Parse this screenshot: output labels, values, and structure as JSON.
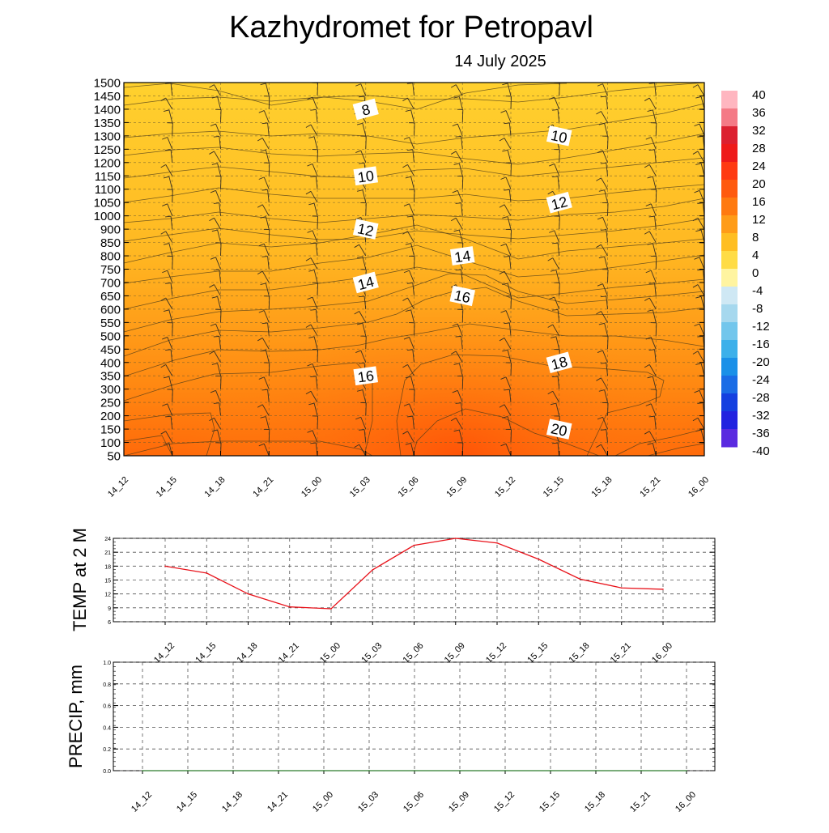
{
  "header": {
    "title": "Kazhydromet  for Petropavl",
    "date": "14 July 2025"
  },
  "colors": {
    "temp_line": "#e8121a",
    "precip_line": "#2a7a2a"
  },
  "chart_data": [
    {
      "type": "heatmap",
      "name": "vertical-cross-section",
      "x": [
        "14_12",
        "14_15",
        "14_18",
        "14_21",
        "15_00",
        "15_03",
        "15_06",
        "15_09",
        "15_12",
        "15_15",
        "15_18",
        "15_21",
        "16_00"
      ],
      "yticks": [
        50,
        100,
        150,
        200,
        250,
        300,
        350,
        400,
        450,
        500,
        550,
        600,
        650,
        700,
        750,
        800,
        850,
        900,
        1000,
        1050,
        1100,
        1150,
        1200,
        1250,
        1300,
        1350,
        1400,
        1450,
        1500
      ],
      "grid_y": true,
      "colorbar": {
        "ticks": [
          40,
          36,
          32,
          28,
          24,
          20,
          16,
          12,
          8,
          4,
          0,
          -4,
          -8,
          -12,
          -16,
          -20,
          -24,
          -28,
          -32,
          -36,
          -40
        ],
        "placement": "right"
      },
      "contour_labels": [
        {
          "text": "8",
          "x": "15_03",
          "y": 1400
        },
        {
          "text": "10",
          "x": "15_15",
          "y": 1300
        },
        {
          "text": "10",
          "x": "15_03",
          "y": 1150
        },
        {
          "text": "12",
          "x": "15_15",
          "y": 1050
        },
        {
          "text": "12",
          "x": "15_03",
          "y": 900
        },
        {
          "text": "14",
          "x": "15_09",
          "y": 800
        },
        {
          "text": "14",
          "x": "15_03",
          "y": 700
        },
        {
          "text": "16",
          "x": "15_09",
          "y": 650
        },
        {
          "text": "16",
          "x": "15_03",
          "y": 350
        },
        {
          "text": "18",
          "x": "15_15",
          "y": 400
        },
        {
          "text": "20",
          "x": "15_15",
          "y": 150
        }
      ]
    },
    {
      "type": "line",
      "name": "temp-2m",
      "ylabel": "TEMP at 2 M",
      "x": [
        "14_12",
        "14_15",
        "14_18",
        "14_21",
        "15_00",
        "15_03",
        "15_06",
        "15_09",
        "15_12",
        "15_15",
        "15_18",
        "15_21",
        "16_00"
      ],
      "series": [
        {
          "values": [
            18,
            16.5,
            12,
            9.2,
            8.8,
            17.2,
            22.5,
            24,
            23,
            19.5,
            15.2,
            13.3,
            13
          ]
        }
      ],
      "ylim": [
        6,
        24
      ],
      "yticks": [
        24,
        21,
        18,
        15,
        12,
        9,
        6
      ],
      "grid": true
    },
    {
      "type": "line",
      "name": "precip",
      "ylabel": "PRECIP, mm",
      "x": [
        "14_12",
        "14_15",
        "14_18",
        "14_21",
        "15_00",
        "15_03",
        "15_06",
        "15_09",
        "15_12",
        "15_15",
        "15_18",
        "15_21",
        "16_00"
      ],
      "series": [
        {
          "values": [
            0,
            0,
            0,
            0,
            0,
            0,
            0,
            0,
            0,
            0,
            0,
            0,
            0
          ]
        }
      ],
      "ylim": [
        0,
        1
      ],
      "yticks": [
        "1.0",
        "0.8",
        "0.6",
        "0.4",
        "0.2",
        "0.0"
      ],
      "grid": true
    }
  ]
}
